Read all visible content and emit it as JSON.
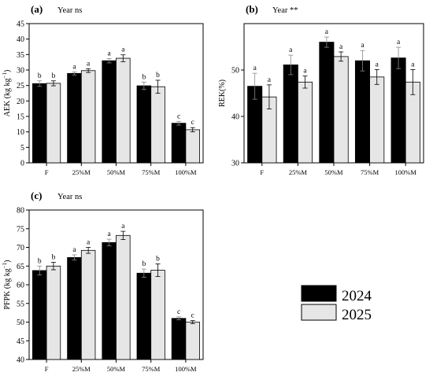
{
  "categories": [
    "F",
    "25%M",
    "50%M",
    "75%M",
    "100%M"
  ],
  "colors": {
    "y2024": "#000000",
    "y2025": "#e6e6e6",
    "border": "#000000"
  },
  "legend": {
    "labels": [
      "2024",
      "2025"
    ]
  },
  "chart_data": [
    {
      "type": "bar",
      "panel": "(a)",
      "title": "Year ns",
      "ylabel": "AEK (kg kg",
      "ylabel_sup": "−1",
      "ylabel_tail": ")",
      "ylim": [
        0,
        45
      ],
      "yticks": [
        0,
        5,
        10,
        15,
        20,
        25,
        30,
        35,
        40,
        45
      ],
      "categories": [
        "F",
        "25%M",
        "50%M",
        "75%M",
        "100%M"
      ],
      "series": [
        {
          "name": "2024",
          "values": [
            25.6,
            28.9,
            33.0,
            24.9,
            12.8
          ],
          "errors": [
            0.9,
            0.5,
            0.7,
            1.2,
            0.6
          ],
          "letters": [
            "b",
            "a",
            "a",
            "b",
            "c"
          ]
        },
        {
          "name": "2025",
          "values": [
            25.7,
            29.8,
            33.8,
            24.6,
            10.7
          ],
          "errors": [
            0.8,
            0.6,
            1.1,
            2.1,
            0.7
          ],
          "letters": [
            "b",
            "a",
            "a",
            "b",
            "c"
          ]
        }
      ]
    },
    {
      "type": "bar",
      "panel": "(b)",
      "title": "Year **",
      "ylabel": "REK(%)",
      "ylabel_sup": "",
      "ylabel_tail": "",
      "ylim": [
        30,
        60
      ],
      "yticks": [
        30,
        40,
        50
      ],
      "categories": [
        "F",
        "25%M",
        "50%M",
        "75%M",
        "100%M"
      ],
      "series": [
        {
          "name": "2024",
          "values": [
            46.5,
            51.1,
            56.0,
            52.0,
            52.6
          ],
          "errors": [
            2.8,
            2.1,
            1.1,
            2.2,
            2.3
          ],
          "letters": [
            "a",
            "a",
            "a",
            "a",
            "a"
          ]
        },
        {
          "name": "2025",
          "values": [
            44.2,
            47.4,
            52.9,
            48.5,
            47.4
          ],
          "errors": [
            2.6,
            1.3,
            1.0,
            1.6,
            2.7
          ],
          "letters": [
            "a",
            "a",
            "a",
            "a",
            "a"
          ]
        }
      ]
    },
    {
      "type": "bar",
      "panel": "(c)",
      "title": "Year ns",
      "ylabel": "PFPK (kg kg",
      "ylabel_sup": "−1",
      "ylabel_tail": ")",
      "ylim": [
        40,
        80
      ],
      "yticks": [
        40,
        45,
        50,
        55,
        60,
        65,
        70,
        75,
        80
      ],
      "categories": [
        "F",
        "25%M",
        "50%M",
        "75%M",
        "100%M"
      ],
      "series": [
        {
          "name": "2024",
          "values": [
            63.8,
            67.3,
            71.3,
            63.1,
            51.0
          ],
          "errors": [
            1.2,
            0.7,
            0.9,
            1.1,
            0.4
          ],
          "letters": [
            "b",
            "a",
            "a",
            "b",
            "c"
          ]
        },
        {
          "name": "2025",
          "values": [
            65.0,
            69.2,
            73.2,
            63.9,
            50.0
          ],
          "errors": [
            1.0,
            0.8,
            1.1,
            1.7,
            0.4
          ],
          "letters": [
            "b",
            "a",
            "a",
            "b",
            "c"
          ]
        }
      ]
    }
  ]
}
